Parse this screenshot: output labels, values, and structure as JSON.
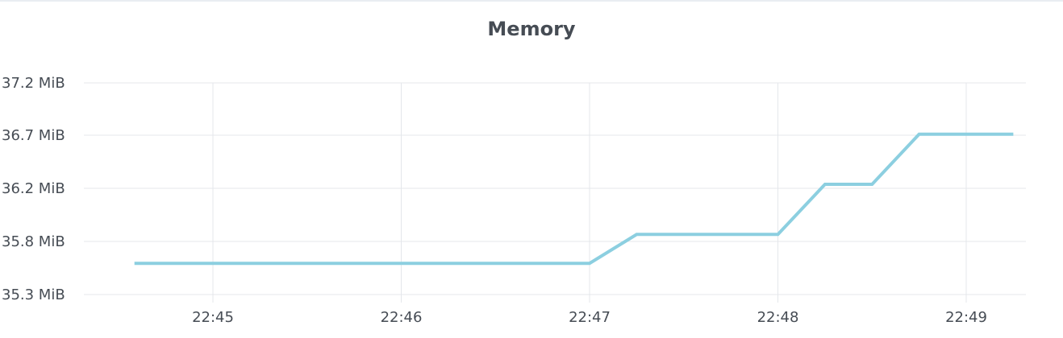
{
  "panel": {
    "title": "Memory"
  },
  "chart_data": {
    "type": "line",
    "title": "Memory",
    "x_ticks": [
      "22:45",
      "22:46",
      "22:47",
      "22:48",
      "22:49"
    ],
    "y_ticks": [
      "37.2 MiB",
      "36.7 MiB",
      "36.2 MiB",
      "35.8 MiB",
      "35.3 MiB"
    ],
    "ylim": [
      35.3,
      37.2
    ],
    "xlim": [
      "22:44:35",
      "22:49:20"
    ],
    "grid": true,
    "line_color": "#8ccfe0",
    "series": [
      {
        "x": [
          "22:44:35",
          "22:47:00",
          "22:47:15",
          "22:48:00",
          "22:48:15",
          "22:48:30",
          "22:48:45",
          "22:49:15"
        ],
        "values": [
          35.58,
          35.58,
          35.84,
          35.84,
          36.29,
          36.29,
          36.74,
          36.74
        ]
      }
    ]
  }
}
